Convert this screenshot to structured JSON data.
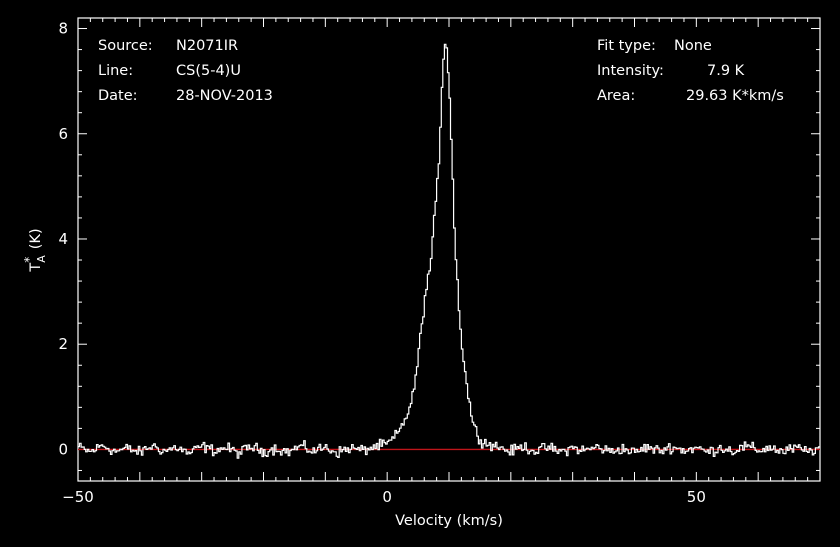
{
  "info": {
    "source_label": "Source:",
    "source_value": "N2071IR",
    "line_label": "Line:",
    "line_value": "CS(5-4)U",
    "date_label": "Date:",
    "date_value": "28-NOV-2013",
    "fit_label": "Fit type:",
    "fit_value": "None",
    "intensity_label": "Intensity:",
    "intensity_value": "7.9 K",
    "area_label": "Area:",
    "area_value": "29.63 K*km/s"
  },
  "colors": {
    "background": "#000000",
    "foreground": "#ffffff",
    "baseline": "#c0151a"
  },
  "chart_data": {
    "type": "line",
    "xlabel": "Velocity (km/s)",
    "ylabel_main": "T",
    "ylabel_sup": "*",
    "ylabel_sub": "A",
    "ylabel_unit": "(K)",
    "xlim": [
      -50,
      70
    ],
    "ylim": [
      -0.6,
      8.2
    ],
    "xticks": [
      -50,
      0,
      50
    ],
    "yticks": [
      0,
      2,
      4,
      6,
      8
    ],
    "grid": false,
    "baseline_y": 0,
    "series": [
      {
        "style": "step",
        "x": [
          -50,
          -48,
          -46,
          -44,
          -42,
          -40,
          -38,
          -36,
          -34,
          -32,
          -30,
          -28,
          -26,
          -24,
          -22,
          -20,
          -18,
          -16,
          -14,
          -12,
          -10,
          -8,
          -6,
          -4,
          -2,
          0,
          1,
          2,
          3,
          4,
          5,
          6,
          7,
          8,
          8.5,
          9,
          9.5,
          10,
          10.5,
          11,
          12,
          13,
          14,
          15,
          16,
          18,
          20,
          22,
          24,
          26,
          28,
          30,
          32,
          34,
          36,
          38,
          40,
          42,
          44,
          46,
          48,
          50,
          52,
          54,
          56,
          58,
          60,
          62,
          64,
          66,
          68,
          70
        ],
        "y": [
          0.05,
          -0.05,
          0.08,
          -0.04,
          0.02,
          -0.06,
          0.07,
          -0.03,
          0.04,
          -0.08,
          0.06,
          -0.02,
          0.03,
          -0.07,
          0.05,
          -0.04,
          0.02,
          -0.05,
          0.06,
          -0.03,
          0.04,
          -0.06,
          0.03,
          -0.02,
          0.05,
          0.1,
          0.2,
          0.35,
          0.6,
          0.9,
          1.7,
          2.8,
          3.5,
          4.8,
          5.8,
          7.3,
          7.9,
          7.0,
          5.6,
          3.8,
          2.1,
          1.1,
          0.45,
          0.2,
          0.12,
          0.05,
          -0.04,
          0.06,
          -0.03,
          0.04,
          -0.05,
          0.03,
          -0.02,
          0.05,
          -0.04,
          0.02,
          -0.06,
          0.04,
          -0.03,
          0.05,
          -0.02,
          0.03,
          -0.05,
          0.04,
          -0.03,
          0.06,
          -0.02,
          0.04,
          -0.05,
          0.03,
          -0.04,
          0.02
        ]
      }
    ]
  }
}
